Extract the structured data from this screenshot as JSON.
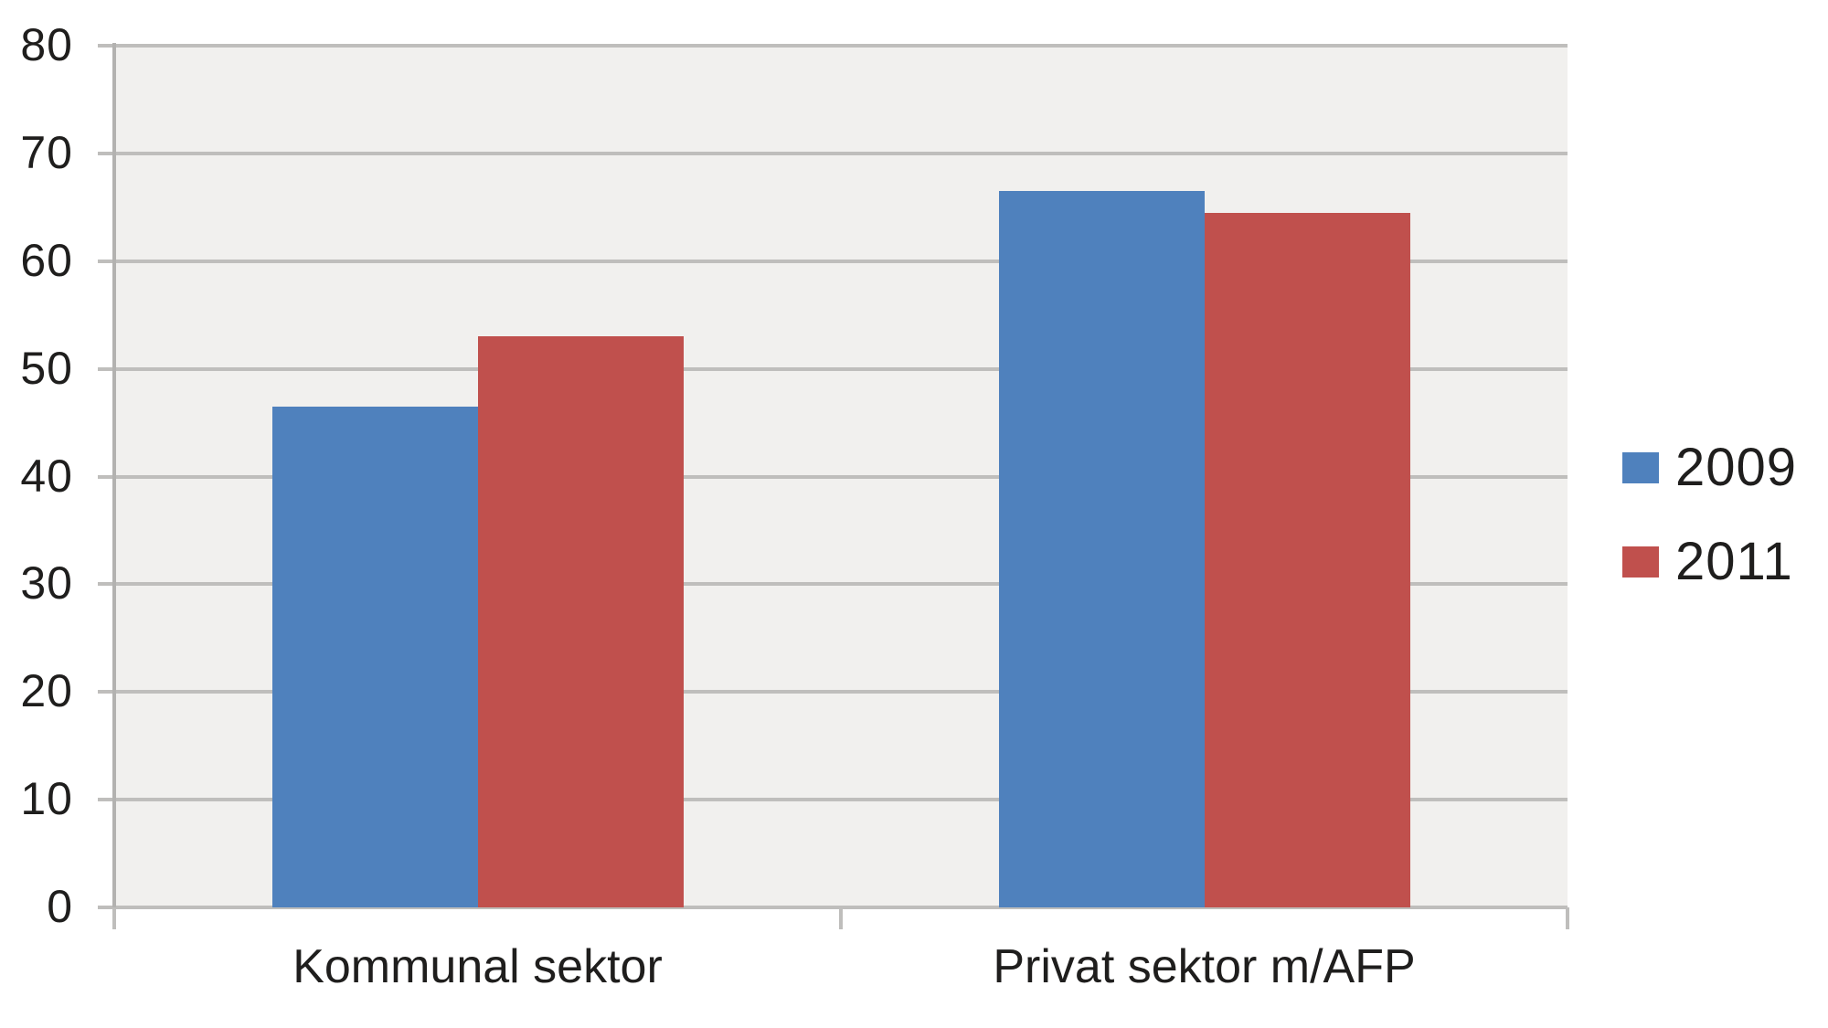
{
  "chart_data": {
    "type": "bar",
    "categories": [
      "Kommunal sektor",
      "Privat sektor m/AFP"
    ],
    "series": [
      {
        "name": "2009",
        "color": "#4F81BD",
        "values": [
          46.5,
          66.5
        ]
      },
      {
        "name": "2011",
        "color": "#C0504D",
        "values": [
          53,
          64.5
        ]
      }
    ],
    "title": "",
    "xlabel": "",
    "ylabel": "",
    "ylim": [
      0,
      80
    ],
    "yticks": [
      0,
      10,
      20,
      30,
      40,
      50,
      60,
      70,
      80
    ],
    "grid": true,
    "legend_position": "right",
    "colors": {
      "plot_background": "#F1F0EE",
      "gridline": "#BFBEBC",
      "axis_line": "#B3B2B0",
      "text": "#1F1E1D",
      "page_background": "#FFFFFF"
    }
  }
}
